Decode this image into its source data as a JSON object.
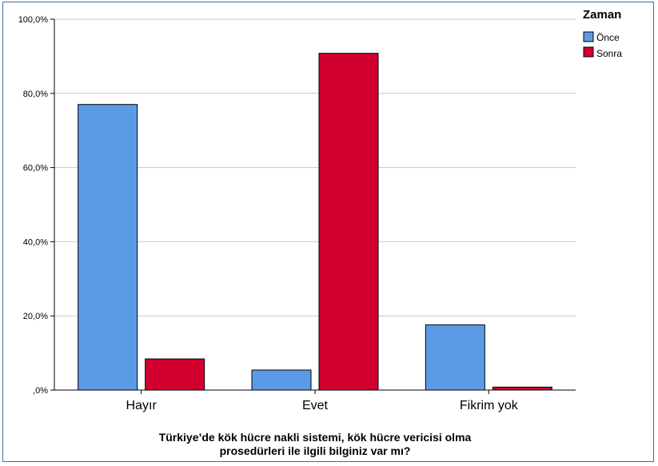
{
  "chart_data": {
    "type": "bar",
    "categories": [
      "Hayır",
      "Evet",
      "Fikrim yok"
    ],
    "series": [
      {
        "name": "Önce",
        "values": [
          77.0,
          5.4,
          17.6
        ],
        "color": "#5b9be6"
      },
      {
        "name": "Sonra",
        "values": [
          8.4,
          90.8,
          0.8
        ],
        "color": "#d2002e"
      }
    ],
    "xlabel_lines": [
      "Türkiye’de kök hücre nakli sistemi, kök hücre vericisi olma",
      "prosedürleri ile ilgili bilginiz var mı?"
    ],
    "ylim": [
      0,
      100
    ],
    "yticks": [
      0,
      20,
      40,
      60,
      80,
      100
    ],
    "ytick_labels": [
      ",0%",
      "20,0%",
      "40,0%",
      "60,0%",
      "80,0%",
      "100,0%"
    ],
    "grid": true,
    "legend": {
      "title": "Zaman",
      "position": "top-right"
    }
  }
}
